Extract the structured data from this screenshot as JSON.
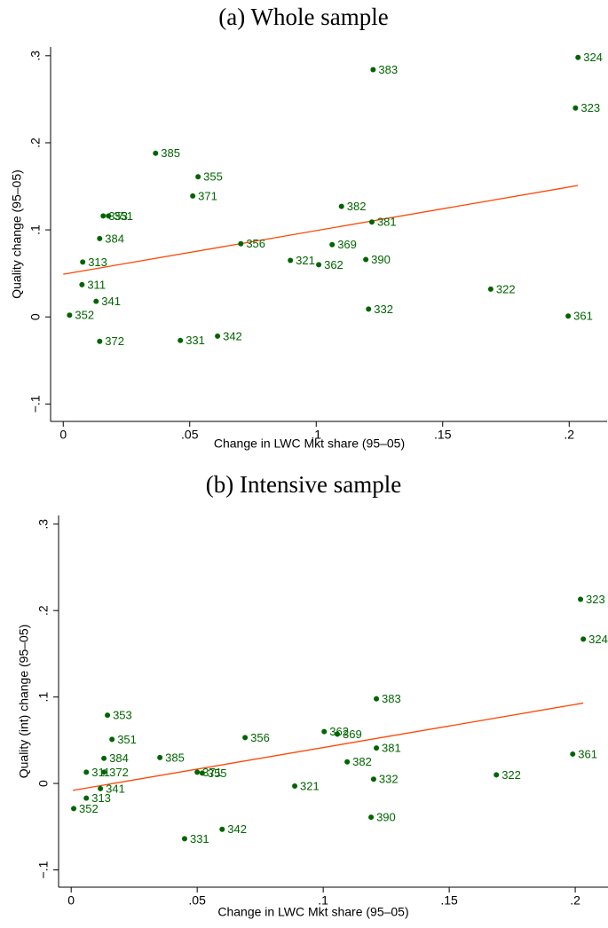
{
  "chart_data": [
    {
      "type": "scatter",
      "title": "(a) Whole sample",
      "x_label": "Change in LWC Mkt share (95–05)",
      "y_label": "Quality change (95–05)",
      "xlim": [
        -0.005,
        0.215
      ],
      "ylim": [
        -0.12,
        0.31
      ],
      "xticks": [
        0,
        {
          "value": 0.05,
          "label": ".05"
        },
        {
          "value": 0.1,
          "label": ".1"
        },
        {
          "value": 0.15,
          "label": ".15"
        },
        {
          "value": 0.2,
          "label": ".2"
        }
      ],
      "yticks": [
        {
          "value": -0.1,
          "label": "−.1"
        },
        0,
        {
          "value": 0.1,
          "label": ".1"
        },
        {
          "value": 0.2,
          "label": ".2"
        },
        {
          "value": 0.3,
          "label": ".3"
        }
      ],
      "x": [
        0.1225,
        0.2035,
        0.2025,
        0.0365,
        0.0533,
        0.0512,
        0.11,
        0.0158,
        0.0179,
        0.122,
        0.0144,
        0.0702,
        0.1063,
        0.0077,
        0.0898,
        0.1196,
        0.101,
        0.0074,
        0.013,
        0.1207,
        0.169,
        0.0025,
        0.1996,
        0.0144,
        0.0463,
        0.061
      ],
      "series": [
        {
          "color": "#006400",
          "values": [
            0.284,
            0.298,
            0.24,
            0.188,
            0.161,
            0.139,
            0.127,
            0.116,
            0.116,
            0.109,
            0.09,
            0.084,
            0.083,
            0.063,
            0.065,
            0.066,
            0.06,
            0.037,
            0.018,
            0.009,
            0.032,
            0.002,
            0.001,
            -0.028,
            -0.027,
            -0.022
          ],
          "point_labels": [
            "383",
            "324",
            "323",
            "385",
            "355",
            "371",
            "382",
            "353",
            "351",
            "381",
            "384",
            "356",
            "369",
            "313",
            "321",
            "390",
            "362",
            "311",
            "341",
            "332",
            "322",
            "352",
            "361",
            "372",
            "331",
            "342"
          ]
        }
      ],
      "fit": {
        "color": "#ff4500",
        "x": [
          0.0,
          0.2035
        ],
        "values": [
          0.049,
          0.151
        ]
      }
    },
    {
      "type": "scatter",
      "title": "(b) Intensive sample",
      "x_label": "Change in LWC Mkt share (95–05)",
      "y_label": "Quality (int) change (95–05)",
      "xlim": [
        -0.005,
        0.213
      ],
      "ylim": [
        -0.12,
        0.31
      ],
      "xticks": [
        0,
        {
          "value": 0.05,
          "label": ".05"
        },
        {
          "value": 0.1,
          "label": ".1"
        },
        {
          "value": 0.15,
          "label": ".15"
        },
        {
          "value": 0.2,
          "label": ".2"
        }
      ],
      "yticks": [
        {
          "value": -0.1,
          "label": "−.1"
        },
        0,
        {
          "value": 0.1,
          "label": ".1"
        },
        {
          "value": 0.2,
          "label": ".2"
        },
        {
          "value": 0.3,
          "label": ".3"
        }
      ],
      "x": [
        0.2021,
        0.2032,
        0.1211,
        0.0144,
        0.0162,
        0.069,
        0.1004,
        0.1056,
        0.1211,
        0.199,
        0.013,
        0.0352,
        0.1095,
        0.006,
        0.013,
        0.05,
        0.052,
        0.1687,
        0.12,
        0.0887,
        0.0116,
        0.006,
        0.001,
        0.119,
        0.0599,
        0.045
      ],
      "series": [
        {
          "color": "#006400",
          "values": [
            0.213,
            0.167,
            0.098,
            0.079,
            0.051,
            0.053,
            0.06,
            0.057,
            0.041,
            0.034,
            0.029,
            0.03,
            0.025,
            0.013,
            0.013,
            0.013,
            0.012,
            0.01,
            0.005,
            -0.003,
            -0.006,
            -0.017,
            -0.029,
            -0.039,
            -0.053,
            -0.064
          ],
          "point_labels": [
            "323",
            "324",
            "383",
            "353",
            "351",
            "356",
            "362",
            "369",
            "381",
            "361",
            "384",
            "385",
            "382",
            "311",
            "372",
            "371",
            "355",
            "322",
            "332",
            "321",
            "341",
            "313",
            "352",
            "390",
            "342",
            "331"
          ]
        }
      ],
      "fit": {
        "color": "#ff4500",
        "x": [
          0.0007,
          0.2032
        ],
        "values": [
          -0.008,
          0.093
        ]
      }
    }
  ]
}
